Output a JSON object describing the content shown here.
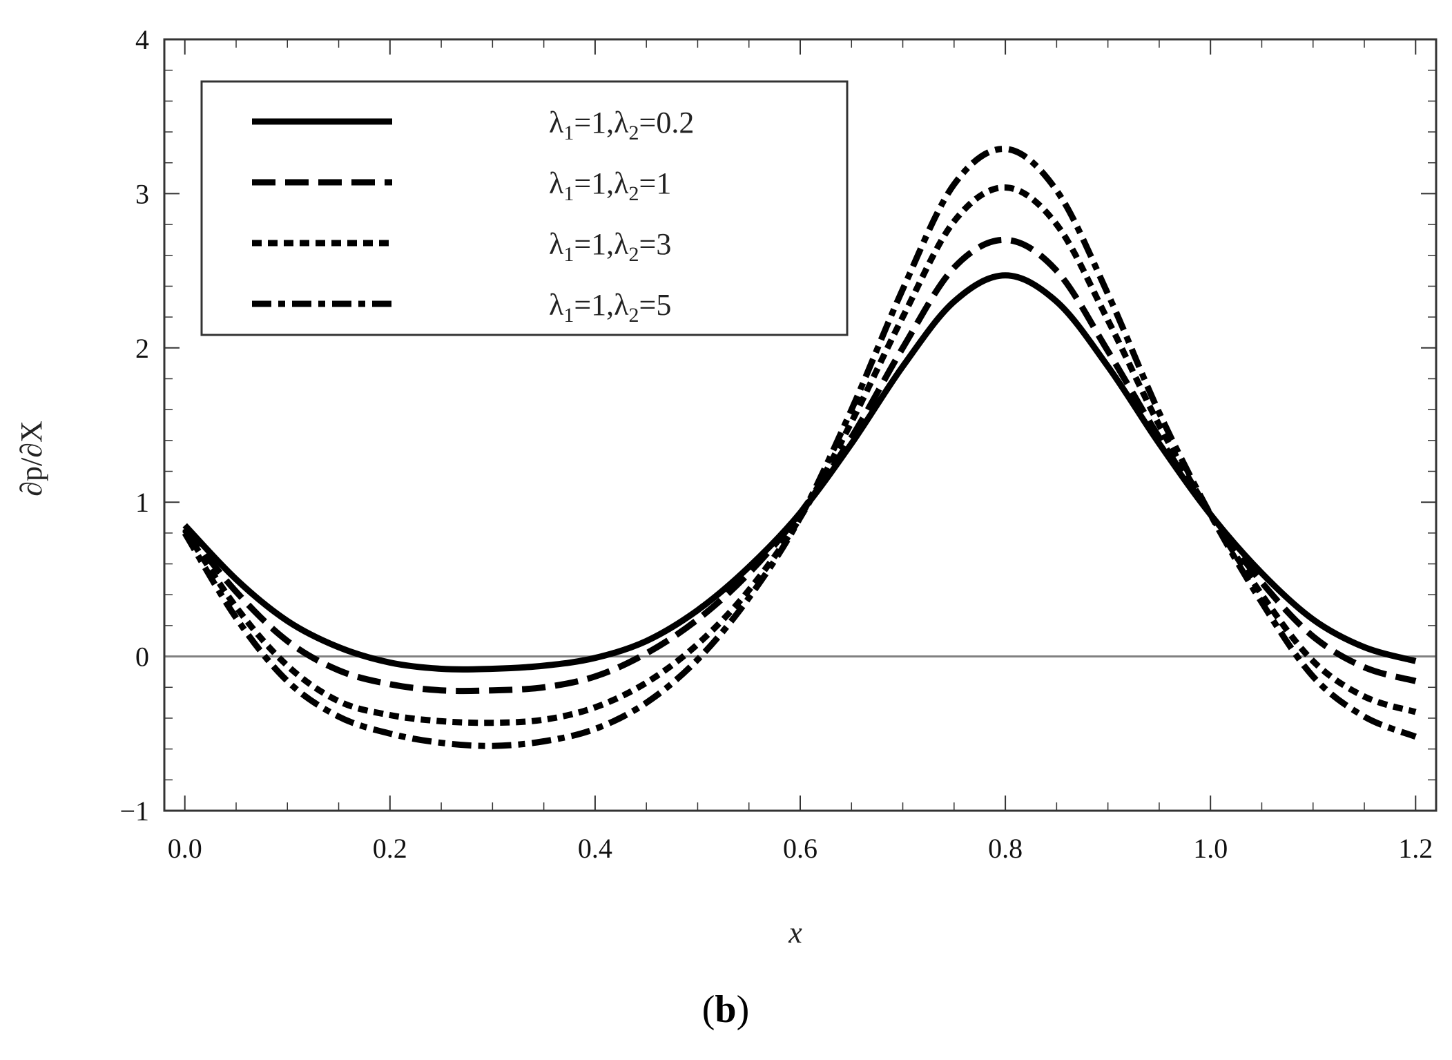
{
  "chart_data": {
    "type": "line",
    "title": "",
    "xlabel": "x",
    "ylabel": "∂p/∂X",
    "xlim": [
      -0.02,
      1.22
    ],
    "ylim": [
      -1,
      4
    ],
    "x_ticks": [
      "0.0",
      "0.2",
      "0.4",
      "0.6",
      "0.8",
      "1.0",
      "1.2"
    ],
    "y_ticks": [
      "−1",
      "0",
      "1",
      "2",
      "3",
      "4"
    ],
    "grid": false,
    "legend_position": "top-left",
    "reference_line_y": 0,
    "panel_label": "b",
    "series": [
      {
        "name": "λ1=1,λ2=0.2",
        "legend": {
          "sym1": "λ",
          "sub1": "1",
          "mid": "=1,",
          "sym2": "λ",
          "sub2": "2",
          "end": "=0.2"
        },
        "style": "solid",
        "x": [
          0.0,
          0.05,
          0.1,
          0.15,
          0.2,
          0.25,
          0.3,
          0.35,
          0.4,
          0.45,
          0.5,
          0.55,
          0.6,
          0.65,
          0.7,
          0.75,
          0.8,
          0.85,
          0.9,
          0.95,
          1.0,
          1.05,
          1.1,
          1.15,
          1.2
        ],
        "y": [
          0.85,
          0.5,
          0.23,
          0.06,
          -0.04,
          -0.08,
          -0.08,
          -0.06,
          -0.01,
          0.1,
          0.3,
          0.58,
          0.93,
          1.38,
          1.88,
          2.3,
          2.47,
          2.3,
          1.88,
          1.38,
          0.92,
          0.54,
          0.24,
          0.06,
          -0.03
        ]
      },
      {
        "name": "λ1=1,λ2=1",
        "legend": {
          "sym1": "λ",
          "sub1": "1",
          "mid": "=1,",
          "sym2": "λ",
          "sub2": "2",
          "end": "=1"
        },
        "style": "dashed",
        "x": [
          0.0,
          0.05,
          0.1,
          0.15,
          0.2,
          0.25,
          0.3,
          0.35,
          0.4,
          0.45,
          0.5,
          0.55,
          0.6,
          0.65,
          0.7,
          0.75,
          0.8,
          0.85,
          0.9,
          0.95,
          1.0,
          1.05,
          1.1,
          1.15,
          1.2
        ],
        "y": [
          0.83,
          0.42,
          0.1,
          -0.09,
          -0.18,
          -0.22,
          -0.22,
          -0.2,
          -0.13,
          0.02,
          0.24,
          0.54,
          0.93,
          1.42,
          2.0,
          2.52,
          2.7,
          2.5,
          1.98,
          1.42,
          0.92,
          0.48,
          0.13,
          -0.07,
          -0.16
        ]
      },
      {
        "name": "λ1=1,λ2=3",
        "legend": {
          "sym1": "λ",
          "sub1": "1",
          "mid": "=1,",
          "sym2": "λ",
          "sub2": "2",
          "end": "=3"
        },
        "style": "dotted",
        "x": [
          0.0,
          0.05,
          0.1,
          0.15,
          0.2,
          0.25,
          0.3,
          0.35,
          0.4,
          0.45,
          0.5,
          0.55,
          0.6,
          0.65,
          0.7,
          0.75,
          0.8,
          0.85,
          0.9,
          0.95,
          1.0,
          1.05,
          1.1,
          1.15,
          1.2
        ],
        "y": [
          0.82,
          0.32,
          -0.06,
          -0.29,
          -0.38,
          -0.42,
          -0.43,
          -0.41,
          -0.33,
          -0.17,
          0.08,
          0.43,
          0.9,
          1.52,
          2.2,
          2.82,
          3.04,
          2.8,
          2.18,
          1.5,
          0.92,
          0.4,
          -0.03,
          -0.26,
          -0.36
        ]
      },
      {
        "name": "λ1=1,λ2=5",
        "legend": {
          "sym1": "λ",
          "sub1": "1",
          "mid": "=1,",
          "sym2": "λ",
          "sub2": "2",
          "end": "=5"
        },
        "style": "dashdot",
        "x": [
          0.0,
          0.05,
          0.1,
          0.15,
          0.2,
          0.25,
          0.3,
          0.35,
          0.4,
          0.45,
          0.5,
          0.55,
          0.6,
          0.65,
          0.7,
          0.75,
          0.8,
          0.85,
          0.9,
          0.95,
          1.0,
          1.05,
          1.1,
          1.15,
          1.2
        ],
        "y": [
          0.8,
          0.25,
          -0.16,
          -0.39,
          -0.5,
          -0.56,
          -0.58,
          -0.55,
          -0.47,
          -0.3,
          -0.02,
          0.38,
          0.9,
          1.6,
          2.38,
          3.06,
          3.29,
          3.02,
          2.35,
          1.58,
          0.92,
          0.35,
          -0.13,
          -0.39,
          -0.52
        ]
      }
    ]
  }
}
